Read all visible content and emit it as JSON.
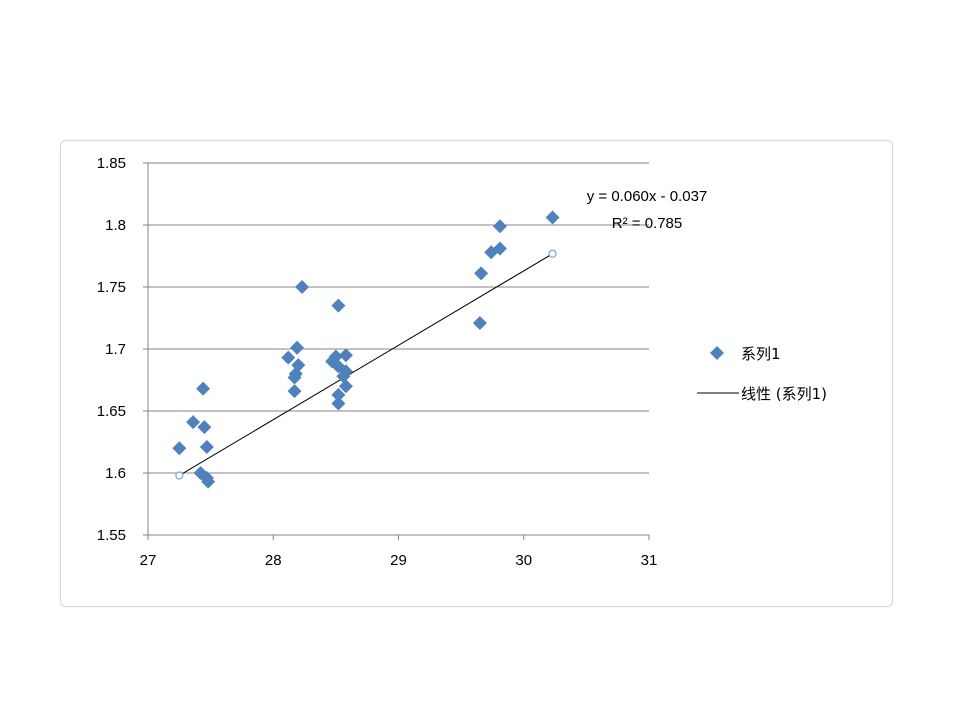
{
  "chart_data": {
    "type": "scatter",
    "xlim": [
      27,
      31
    ],
    "ylim": [
      1.55,
      1.85
    ],
    "x_ticks": [
      "27",
      "28",
      "29",
      "30",
      "31"
    ],
    "y_ticks": [
      "1.55",
      "1.6",
      "1.65",
      "1.7",
      "1.75",
      "1.8",
      "1.85"
    ],
    "grid": "horizontal",
    "legend_position": "right",
    "series": [
      {
        "name": "系列1",
        "color": "#4f81bd",
        "marker": "diamond",
        "points": [
          [
            27.25,
            1.62
          ],
          [
            27.36,
            1.641
          ],
          [
            27.42,
            1.6
          ],
          [
            27.44,
            1.668
          ],
          [
            27.45,
            1.637
          ],
          [
            27.47,
            1.621
          ],
          [
            27.47,
            1.596
          ],
          [
            27.48,
            1.593
          ],
          [
            28.12,
            1.693
          ],
          [
            28.17,
            1.677
          ],
          [
            28.17,
            1.666
          ],
          [
            28.18,
            1.68
          ],
          [
            28.19,
            1.701
          ],
          [
            28.2,
            1.687
          ],
          [
            28.23,
            1.75
          ],
          [
            28.47,
            1.69
          ],
          [
            28.5,
            1.694
          ],
          [
            28.52,
            1.686
          ],
          [
            28.52,
            1.735
          ],
          [
            28.52,
            1.663
          ],
          [
            28.52,
            1.656
          ],
          [
            28.56,
            1.678
          ],
          [
            28.58,
            1.695
          ],
          [
            28.58,
            1.682
          ],
          [
            28.58,
            1.67
          ],
          [
            29.65,
            1.721
          ],
          [
            29.66,
            1.761
          ],
          [
            29.74,
            1.778
          ],
          [
            29.81,
            1.799
          ],
          [
            29.81,
            1.781
          ],
          [
            30.23,
            1.806
          ]
        ]
      }
    ],
    "trendline": {
      "name": "线性 (系列1)",
      "color": "#000000",
      "x_start": 27.25,
      "x_end": 30.23,
      "slope": 0.06,
      "intercept": -0.037,
      "equation": "y = 0.060x - 0.037",
      "r2_label": "R² = 0.785"
    }
  }
}
